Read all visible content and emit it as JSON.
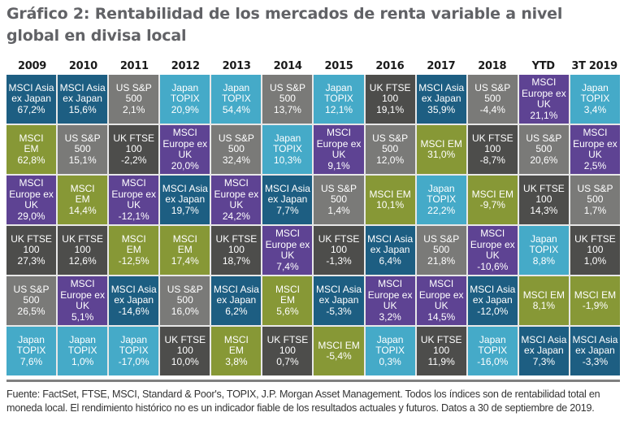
{
  "colors": {
    "MSCI Asia ex Japan": "#1d5e82",
    "MSCI EM": "#879836",
    "US S&P 500": "#7a7a78",
    "UK FTSE 100": "#4d4d4b",
    "MSCI Europe ex UK": "#5e4393",
    "Japan TOPIX": "#45aac8"
  },
  "chart_data": {
    "type": "table",
    "title": "Gráfico 2: Rentabilidad de los mercados de renta variable a nivel global en divisa local",
    "source": "Fuente: FactSet, FTSE, MSCI, Standard & Poor's, TOPIX, J.P. Morgan Asset Management. Todos los índices son de rentabilidad total en moneda local. El rendimiento histórico no es un indicador fiable de los resultados actuales y futuros. Datos a 30 de septiembre de 2019.",
    "columns": [
      "2009",
      "2010",
      "2011",
      "2012",
      "2013",
      "2014",
      "2015",
      "2016",
      "2017",
      "2018",
      "YTD",
      "3T 2019"
    ],
    "rank_order": "descending by return within each column",
    "series": [
      {
        "name": "2009",
        "cells": [
          {
            "index": "MSCI Asia ex Japan",
            "label": "MSCI Asia\nex Japan",
            "value": "67,2%"
          },
          {
            "index": "MSCI EM",
            "label": "MSCI\nEM",
            "value": "62,8%"
          },
          {
            "index": "MSCI Europe ex UK",
            "label": "MSCI\nEurope ex\nUK",
            "value": "29,0%"
          },
          {
            "index": "UK FTSE 100",
            "label": "UK FTSE\n100",
            "value": "27,3%"
          },
          {
            "index": "US S&P 500",
            "label": "US S&P\n500",
            "value": "26,5%"
          },
          {
            "index": "Japan TOPIX",
            "label": "Japan\nTOPIX",
            "value": "7,6%"
          }
        ]
      },
      {
        "name": "2010",
        "cells": [
          {
            "index": "MSCI Asia ex Japan",
            "label": "MSCI Asia\nex Japan",
            "value": "15,6%"
          },
          {
            "index": "US S&P 500",
            "label": "US S&P\n500",
            "value": "15,1%"
          },
          {
            "index": "MSCI EM",
            "label": "MSCI\nEM",
            "value": "14,4%"
          },
          {
            "index": "UK FTSE 100",
            "label": "UK FTSE\n100",
            "value": "12,6%"
          },
          {
            "index": "MSCI Europe ex UK",
            "label": "MSCI\nEurope ex\nUK",
            "value": "5,1%"
          },
          {
            "index": "Japan TOPIX",
            "label": "Japan\nTOPIX",
            "value": "1,0%"
          }
        ]
      },
      {
        "name": "2011",
        "cells": [
          {
            "index": "US S&P 500",
            "label": "US S&P\n500",
            "value": "2,1%"
          },
          {
            "index": "UK FTSE 100",
            "label": "UK FTSE\n100",
            "value": "-2,2%"
          },
          {
            "index": "MSCI Europe ex UK",
            "label": "MSCI\nEurope ex\nUK",
            "value": "-12,1%"
          },
          {
            "index": "MSCI EM",
            "label": "MSCI\nEM",
            "value": "-12,5%"
          },
          {
            "index": "MSCI Asia ex Japan",
            "label": "MSCI Asia\nex Japan",
            "value": "-14,6%"
          },
          {
            "index": "Japan TOPIX",
            "label": "Japan\nTOPIX",
            "value": "-17,0%"
          }
        ]
      },
      {
        "name": "2012",
        "cells": [
          {
            "index": "Japan TOPIX",
            "label": "Japan\nTOPIX",
            "value": "20,9%"
          },
          {
            "index": "MSCI Europe ex UK",
            "label": "MSCI\nEurope ex\nUK",
            "value": "20,0%"
          },
          {
            "index": "MSCI Asia ex Japan",
            "label": "MSCI Asia\nex Japan",
            "value": "19,7%"
          },
          {
            "index": "MSCI EM",
            "label": "MSCI\nEM",
            "value": "17,4%"
          },
          {
            "index": "US S&P 500",
            "label": "US S&P\n500",
            "value": "16,0%"
          },
          {
            "index": "UK FTSE 100",
            "label": "UK FTSE\n100",
            "value": "10,0%"
          }
        ]
      },
      {
        "name": "2013",
        "cells": [
          {
            "index": "Japan TOPIX",
            "label": "Japan\nTOPIX",
            "value": "54,4%"
          },
          {
            "index": "US S&P 500",
            "label": "US S&P\n500",
            "value": "32,4%"
          },
          {
            "index": "MSCI Europe ex UK",
            "label": "MSCI\nEurope ex\nUK",
            "value": "24,2%"
          },
          {
            "index": "UK FTSE 100",
            "label": "UK FTSE\n100",
            "value": "18,7%"
          },
          {
            "index": "MSCI Asia ex Japan",
            "label": "MSCI Asia\nex Japan",
            "value": "6,2%"
          },
          {
            "index": "MSCI EM",
            "label": "MSCI\nEM",
            "value": "3,8%"
          }
        ]
      },
      {
        "name": "2014",
        "cells": [
          {
            "index": "US S&P 500",
            "label": "US S&P\n500",
            "value": "13,7%"
          },
          {
            "index": "Japan TOPIX",
            "label": "Japan\nTOPIX",
            "value": "10,3%"
          },
          {
            "index": "MSCI Asia ex Japan",
            "label": "MSCI Asia\nex Japan",
            "value": "7,7%"
          },
          {
            "index": "MSCI Europe ex UK",
            "label": "MSCI\nEurope ex\nUK",
            "value": "7,4%"
          },
          {
            "index": "MSCI EM",
            "label": "MSCI\nEM",
            "value": "5,6%"
          },
          {
            "index": "UK FTSE 100",
            "label": "UK FTSE\n100",
            "value": "0,7%"
          }
        ]
      },
      {
        "name": "2015",
        "cells": [
          {
            "index": "Japan TOPIX",
            "label": "Japan\nTOPIX",
            "value": "12,1%"
          },
          {
            "index": "MSCI Europe ex UK",
            "label": "MSCI\nEurope ex\nUK",
            "value": "9,1%"
          },
          {
            "index": "US S&P 500",
            "label": "US S&P\n500",
            "value": "1,4%"
          },
          {
            "index": "UK FTSE 100",
            "label": "UK FTSE\n100",
            "value": "-1,3%"
          },
          {
            "index": "MSCI Asia ex Japan",
            "label": "MSCI Asia\nex Japan",
            "value": "-5,3%"
          },
          {
            "index": "MSCI EM",
            "label": "MSCI EM",
            "value": "-5,4%"
          }
        ]
      },
      {
        "name": "2016",
        "cells": [
          {
            "index": "UK FTSE 100",
            "label": "UK FTSE\n100",
            "value": "19,1%"
          },
          {
            "index": "US S&P 500",
            "label": "US S&P\n500",
            "value": "12,0%"
          },
          {
            "index": "MSCI EM",
            "label": "MSCI EM",
            "value": "10,1%"
          },
          {
            "index": "MSCI Asia ex Japan",
            "label": "MSCI Asia\nex Japan",
            "value": "6,4%"
          },
          {
            "index": "MSCI Europe ex UK",
            "label": "MSCI\nEurope ex\nUK",
            "value": "3,2%"
          },
          {
            "index": "Japan TOPIX",
            "label": "Japan\nTOPIX",
            "value": "0,3%"
          }
        ]
      },
      {
        "name": "2017",
        "cells": [
          {
            "index": "MSCI Asia ex Japan",
            "label": "MSCI Asia\nex Japan",
            "value": "35,9%"
          },
          {
            "index": "MSCI EM",
            "label": "MSCI EM",
            "value": "31,0%"
          },
          {
            "index": "Japan TOPIX",
            "label": "Japan\nTOPIX",
            "value": "22,2%"
          },
          {
            "index": "US S&P 500",
            "label": "US S&P\n500",
            "value": "21,8%"
          },
          {
            "index": "MSCI Europe ex UK",
            "label": "MSCI\nEurope ex\nUK",
            "value": "14,5%"
          },
          {
            "index": "UK FTSE 100",
            "label": "UK FTSE\n100",
            "value": "11,9%"
          }
        ]
      },
      {
        "name": "2018",
        "cells": [
          {
            "index": "US S&P 500",
            "label": "US S&P\n500",
            "value": "-4,4%"
          },
          {
            "index": "UK FTSE 100",
            "label": "UK FTSE\n100",
            "value": "-8,7%"
          },
          {
            "index": "MSCI EM",
            "label": "MSCI EM",
            "value": "-9,7%"
          },
          {
            "index": "MSCI Europe ex UK",
            "label": "MSCI\nEurope ex\nUK",
            "value": "-10,6%"
          },
          {
            "index": "MSCI Asia ex Japan",
            "label": "MSCI Asia\nex Japan",
            "value": "-12,0%"
          },
          {
            "index": "Japan TOPIX",
            "label": "Japan\nTOPIX",
            "value": "-16,0%"
          }
        ]
      },
      {
        "name": "YTD",
        "cells": [
          {
            "index": "MSCI Europe ex UK",
            "label": "MSCI\nEurope ex\nUK",
            "value": "21,1%"
          },
          {
            "index": "US S&P 500",
            "label": "US S&P\n500",
            "value": "20,6%"
          },
          {
            "index": "UK FTSE 100",
            "label": "UK FTSE\n100",
            "value": "14,3%"
          },
          {
            "index": "Japan TOPIX",
            "label": "Japan\nTOPIX",
            "value": "8,8%"
          },
          {
            "index": "MSCI EM",
            "label": "MSCI EM",
            "value": "8,1%"
          },
          {
            "index": "MSCI Asia ex Japan",
            "label": "MSCI Asia\nex Japan",
            "value": "7,3%"
          }
        ]
      },
      {
        "name": "3T 2019",
        "cells": [
          {
            "index": "Japan TOPIX",
            "label": "Japan\nTOPIX",
            "value": "3,4%"
          },
          {
            "index": "MSCI Europe ex UK",
            "label": "MSCI\nEurope ex\nUK",
            "value": "2,5%"
          },
          {
            "index": "US S&P 500",
            "label": "US S&P\n500",
            "value": "1,7%"
          },
          {
            "index": "UK FTSE 100",
            "label": "UK FTSE\n100",
            "value": "1,0%"
          },
          {
            "index": "MSCI EM",
            "label": "MSCI EM",
            "value": "-1,9%"
          },
          {
            "index": "MSCI Asia ex Japan",
            "label": "MSCI Asia\nex Japan",
            "value": "-3,3%"
          }
        ]
      }
    ]
  }
}
